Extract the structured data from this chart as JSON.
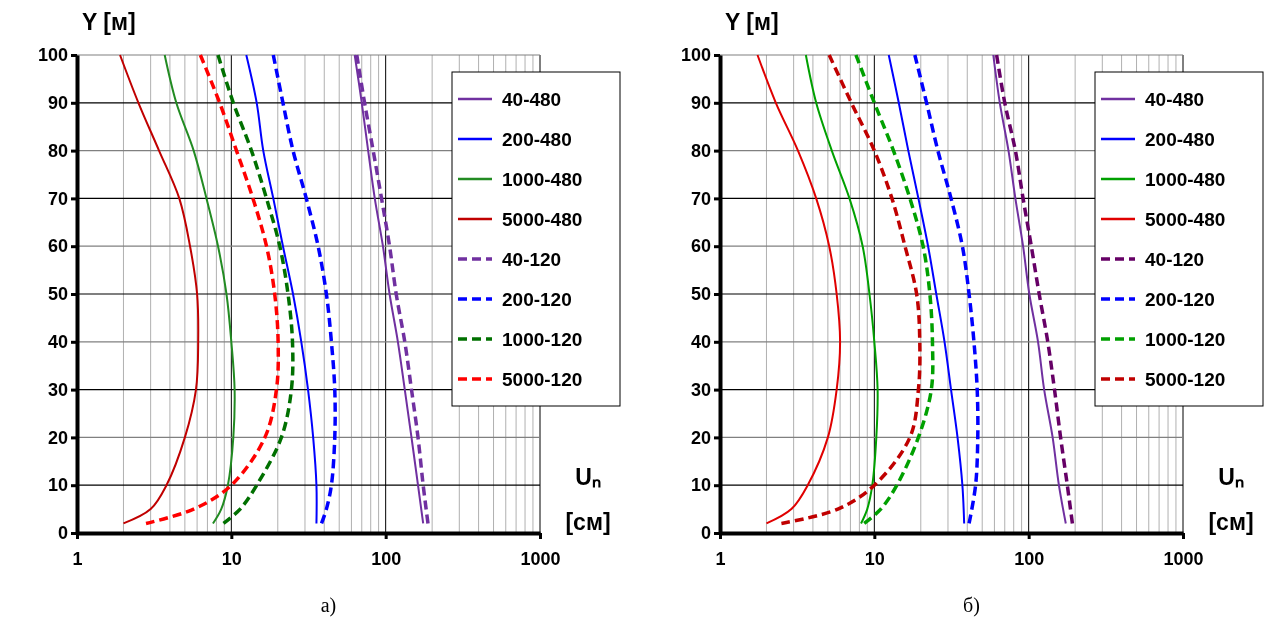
{
  "chart_data": [
    {
      "type": "line",
      "title": "а)",
      "xlabel": "Uₙ [см]",
      "ylabel": "Y [м]",
      "log": "x",
      "grid": true,
      "legend": "right",
      "marker": "none",
      "xlim": [
        1,
        1000
      ],
      "ylim": [
        0,
        100
      ],
      "xticks": [
        1,
        {
          "value": 2,
          "label": null
        },
        {
          "value": 3,
          "label": null
        },
        {
          "value": 4,
          "label": null
        },
        {
          "value": 5,
          "label": null
        },
        {
          "value": 6,
          "label": null
        },
        {
          "value": 7,
          "label": null
        },
        {
          "value": 8,
          "label": null
        },
        {
          "value": 9,
          "label": null
        },
        10,
        {
          "value": 20,
          "label": null
        },
        {
          "value": 30,
          "label": null
        },
        {
          "value": 40,
          "label": null
        },
        {
          "value": 50,
          "label": null
        },
        {
          "value": 60,
          "label": null
        },
        {
          "value": 70,
          "label": null
        },
        {
          "value": 80,
          "label": null
        },
        {
          "value": 90,
          "label": null
        },
        100,
        {
          "value": 200,
          "label": null
        },
        {
          "value": 300,
          "label": null
        },
        {
          "value": 400,
          "label": null
        },
        {
          "value": 500,
          "label": null
        },
        {
          "value": 600,
          "label": null
        },
        {
          "value": 700,
          "label": null
        },
        {
          "value": 800,
          "label": null
        },
        {
          "value": 900,
          "label": null
        },
        1000
      ],
      "yticks": [
        0,
        10,
        20,
        30,
        40,
        50,
        60,
        70,
        80,
        90,
        100
      ],
      "series": [
        {
          "name": "40-480",
          "color": "#7030a0",
          "line_style": "solid",
          "x": [
            63,
            70,
            77,
            85,
            96,
            106,
            120,
            133,
            147,
            162,
            175
          ],
          "values": [
            100,
            90,
            80,
            70,
            60,
            50,
            40,
            30,
            20,
            10,
            2
          ]
        },
        {
          "name": "200-480",
          "color": "#0000ff",
          "line_style": "solid",
          "x": [
            12.5,
            14.6,
            16.1,
            18.7,
            21.6,
            25.1,
            28.4,
            31.4,
            33.9,
            35.6,
            35.6
          ],
          "values": [
            100,
            90,
            80,
            70,
            60,
            50,
            40,
            30,
            20,
            10,
            2
          ]
        },
        {
          "name": "1000-480",
          "color": "#228b22",
          "line_style": "solid",
          "x": [
            3.7,
            4.4,
            5.7,
            6.9,
            8.2,
            9.3,
            10,
            10.5,
            10.3,
            9.5,
            8.6,
            7.6
          ],
          "values": [
            100,
            90,
            80,
            70,
            60,
            50,
            40,
            30,
            20,
            10,
            5,
            2
          ]
        },
        {
          "name": "5000-480",
          "color": "#c00000",
          "line_style": "solid",
          "x": [
            1.9,
            2.5,
            3.4,
            4.6,
            5.4,
            6,
            6.1,
            5.9,
            5,
            3.8,
            3,
            2
          ],
          "values": [
            100,
            90,
            80,
            70,
            60,
            50,
            40,
            30,
            20,
            10,
            5,
            2
          ]
        },
        {
          "name": "40-120",
          "color": "#7030a0",
          "line_style": "dashed",
          "x": [
            65,
            73,
            83,
            94,
            106,
            117,
            133,
            147,
            162,
            175,
            188
          ],
          "values": [
            100,
            90,
            80,
            70,
            60,
            50,
            40,
            30,
            20,
            10,
            2
          ]
        },
        {
          "name": "200-120",
          "color": "#0000ff",
          "line_style": "dashed",
          "x": [
            18.7,
            21.6,
            25.1,
            30.6,
            36.5,
            41.3,
            44.5,
            46.8,
            46.8,
            44.5,
            41.3,
            38.4
          ],
          "values": [
            100,
            90,
            80,
            70,
            60,
            50,
            40,
            30,
            20,
            10,
            5,
            2
          ]
        },
        {
          "name": "1000-120",
          "color": "#007000",
          "line_style": "dashed",
          "x": [
            8.2,
            10.3,
            13.5,
            16.9,
            20.6,
            23.3,
            24.9,
            24.5,
            21.1,
            14.6,
            11.4,
            8.9
          ],
          "values": [
            100,
            90,
            80,
            70,
            60,
            50,
            40,
            30,
            20,
            10,
            5,
            2
          ]
        },
        {
          "name": "5000-120",
          "color": "#ff0000",
          "line_style": "dashed",
          "x": [
            6.3,
            8.4,
            10.8,
            13.8,
            16.9,
            19.1,
            20.1,
            19.6,
            16.5,
            10,
            5.7,
            2.8
          ],
          "values": [
            100,
            90,
            80,
            70,
            60,
            50,
            40,
            30,
            20,
            10,
            5,
            2
          ]
        }
      ]
    },
    {
      "type": "line",
      "title": "б)",
      "xlabel": "Uₙ [см]",
      "ylabel": "Y [м]",
      "log": "x",
      "grid": true,
      "legend": "right",
      "marker": "none",
      "xlim": [
        1,
        1000
      ],
      "ylim": [
        0,
        100
      ],
      "xticks": [
        1,
        {
          "value": 2,
          "label": null
        },
        {
          "value": 3,
          "label": null
        },
        {
          "value": 4,
          "label": null
        },
        {
          "value": 5,
          "label": null
        },
        {
          "value": 6,
          "label": null
        },
        {
          "value": 7,
          "label": null
        },
        {
          "value": 8,
          "label": null
        },
        {
          "value": 9,
          "label": null
        },
        10,
        {
          "value": 20,
          "label": null
        },
        {
          "value": 30,
          "label": null
        },
        {
          "value": 40,
          "label": null
        },
        {
          "value": 50,
          "label": null
        },
        {
          "value": 60,
          "label": null
        },
        {
          "value": 70,
          "label": null
        },
        {
          "value": 80,
          "label": null
        },
        {
          "value": 90,
          "label": null
        },
        100,
        {
          "value": 200,
          "label": null
        },
        {
          "value": 300,
          "label": null
        },
        {
          "value": 400,
          "label": null
        },
        {
          "value": 500,
          "label": null
        },
        {
          "value": 600,
          "label": null
        },
        {
          "value": 700,
          "label": null
        },
        {
          "value": 800,
          "label": null
        },
        {
          "value": 900,
          "label": null
        },
        1000
      ],
      "yticks": [
        0,
        10,
        20,
        30,
        40,
        50,
        60,
        70,
        80,
        90,
        100
      ],
      "series": [
        {
          "name": "40-480",
          "color": "#7030a0",
          "line_style": "solid",
          "x": [
            59,
            65,
            74,
            82,
            92,
            101,
            115,
            126,
            143,
            157,
            174
          ],
          "values": [
            100,
            90,
            80,
            70,
            60,
            50,
            40,
            30,
            20,
            10,
            2
          ]
        },
        {
          "name": "200-480",
          "color": "#0000ff",
          "line_style": "solid",
          "x": [
            12.4,
            14.4,
            16.6,
            19.3,
            22.3,
            25.2,
            28.5,
            31.4,
            34.6,
            37.2,
            38.2
          ],
          "values": [
            100,
            90,
            80,
            70,
            60,
            50,
            40,
            30,
            20,
            10,
            2
          ]
        },
        {
          "name": "1000-480",
          "color": "#00a000",
          "line_style": "solid",
          "x": [
            3.6,
            4.2,
            5.3,
            6.9,
            8.4,
            9.3,
            10,
            10.5,
            10.3,
            9.7,
            9,
            8.2
          ],
          "values": [
            100,
            90,
            80,
            70,
            60,
            50,
            40,
            30,
            20,
            10,
            5,
            2
          ]
        },
        {
          "name": "5000-480",
          "color": "#e00000",
          "line_style": "solid",
          "x": [
            1.75,
            2.3,
            3.2,
            4.2,
            5.1,
            5.7,
            6,
            5.7,
            5,
            3.7,
            2.9,
            2
          ],
          "values": [
            100,
            90,
            80,
            70,
            60,
            50,
            40,
            30,
            20,
            10,
            5,
            2
          ]
        },
        {
          "name": "40-120",
          "color": "#660066",
          "line_style": "dashed",
          "x": [
            62,
            70,
            82,
            92,
            104,
            117,
            133,
            147,
            161,
            178,
            192
          ],
          "values": [
            100,
            90,
            80,
            70,
            60,
            50,
            40,
            30,
            20,
            10,
            2
          ]
        },
        {
          "name": "200-120",
          "color": "#0000ff",
          "line_style": "dashed",
          "x": [
            18.3,
            21.8,
            25.8,
            31.4,
            37.2,
            41.1,
            44.2,
            46.4,
            46.8,
            45.3,
            41.1
          ],
          "values": [
            100,
            90,
            80,
            70,
            60,
            50,
            40,
            30,
            20,
            10,
            2
          ]
        },
        {
          "name": "1000-120",
          "color": "#00a000",
          "line_style": "dashed",
          "x": [
            7.6,
            10,
            13.3,
            17,
            20.7,
            22.9,
            23.8,
            23.4,
            19.3,
            14,
            11,
            8.6
          ],
          "values": [
            100,
            90,
            80,
            70,
            60,
            50,
            40,
            30,
            20,
            10,
            5,
            2
          ]
        },
        {
          "name": "5000-120",
          "color": "#c00000",
          "line_style": "dashed",
          "x": [
            5.1,
            7.1,
            10,
            13,
            15.8,
            18.8,
            19.7,
            19.3,
            17,
            10,
            5.8,
            2.5
          ],
          "values": [
            100,
            90,
            80,
            70,
            60,
            50,
            40,
            30,
            20,
            10,
            5,
            2
          ]
        }
      ]
    }
  ]
}
